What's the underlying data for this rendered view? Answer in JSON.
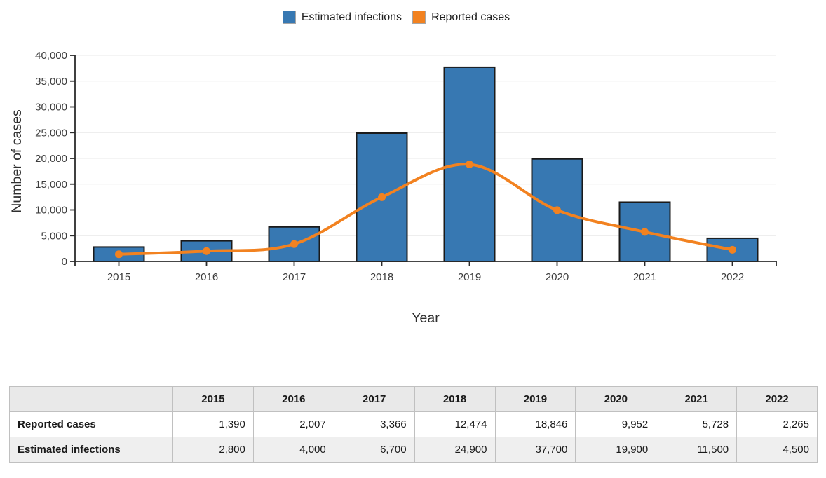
{
  "chart_data": {
    "type": "bar+line",
    "title": "",
    "xlabel": "Year",
    "ylabel": "Number of cases",
    "categories": [
      "2015",
      "2016",
      "2017",
      "2018",
      "2019",
      "2020",
      "2021",
      "2022"
    ],
    "series": [
      {
        "name": "Estimated infections",
        "type": "bar",
        "color": "#3778b2",
        "values": [
          2800,
          4000,
          6700,
          24900,
          37700,
          19900,
          11500,
          4500
        ]
      },
      {
        "name": "Reported cases",
        "type": "line",
        "color": "#f28220",
        "values": [
          1390,
          2007,
          3366,
          12474,
          18846,
          9952,
          5728,
          2265
        ]
      }
    ],
    "ylim": [
      0,
      40000
    ],
    "ytick_step": 5000,
    "ytick_labels": [
      "0",
      "5,000",
      "10,000",
      "15,000",
      "20,000",
      "25,000",
      "30,000",
      "35,000",
      "40,000"
    ],
    "grid": true,
    "legend_position": "top",
    "style": {
      "bar_border_color": "#1a1a1a",
      "grid_color": "#e8e8e8",
      "axis_color": "#2b2b2b",
      "tick_text_color": "#3d3d3d",
      "axis_title_color": "#2e2e2e"
    }
  },
  "table": {
    "corner_label": "",
    "columns": [
      "2015",
      "2016",
      "2017",
      "2018",
      "2019",
      "2020",
      "2021",
      "2022"
    ],
    "rows": [
      {
        "label": "Reported cases",
        "values": [
          "1,390",
          "2,007",
          "3,366",
          "12,474",
          "18,846",
          "9,952",
          "5,728",
          "2,265"
        ]
      },
      {
        "label": "Estimated infections",
        "values": [
          "2,800",
          "4,000",
          "6,700",
          "24,900",
          "37,700",
          "19,900",
          "11,500",
          "4,500"
        ]
      }
    ]
  }
}
